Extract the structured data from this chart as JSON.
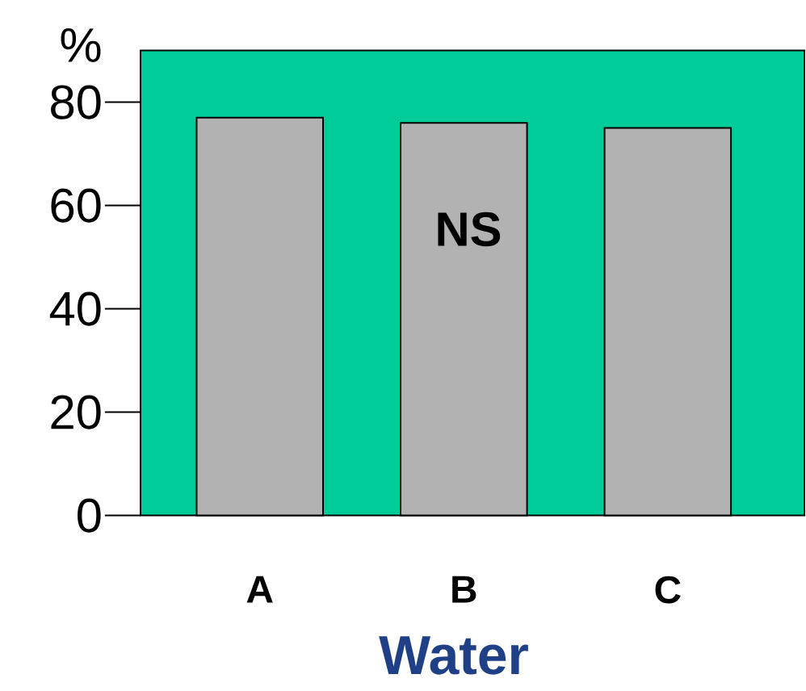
{
  "chart_data": {
    "type": "bar",
    "xlabel": "Water",
    "ylabel": "%",
    "categories": [
      "A",
      "B",
      "C"
    ],
    "values": [
      77,
      76,
      75
    ],
    "color": "#b2b2b2",
    "ylim": [
      0,
      90
    ],
    "yticks": [
      0,
      20,
      40,
      60,
      80
    ],
    "grid": false,
    "annotations": [
      "NS"
    ]
  }
}
